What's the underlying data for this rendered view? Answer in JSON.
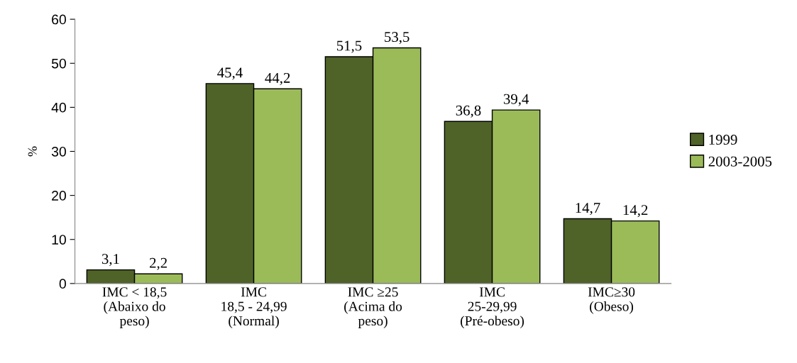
{
  "chart_data": {
    "type": "bar",
    "ylabel": "%",
    "categories": [
      "IMC < 18,5\n(Abaixo do\npeso)",
      "IMC\n18,5 - 24,99\n(Normal)",
      "IMC ≥25\n(Acima do\npeso)",
      "IMC\n25-29,99\n(Pré-obeso)",
      "IMC≥30\n(Obeso)"
    ],
    "series": [
      {
        "name": "1999",
        "color": "#4f6228",
        "values": [
          3.1,
          45.4,
          51.5,
          36.8,
          14.7
        ],
        "value_labels": [
          "3,1",
          "45,4",
          "51,5",
          "36,8",
          "14,7"
        ]
      },
      {
        "name": "2003-2005",
        "color": "#9bbb59",
        "values": [
          2.2,
          44.2,
          53.5,
          39.4,
          14.2
        ],
        "value_labels": [
          "2,2",
          "44,2",
          "53,5",
          "39,4",
          "14,2"
        ]
      }
    ],
    "ylim": [
      0,
      60
    ],
    "yticks": [
      0,
      10,
      20,
      30,
      40,
      50,
      60
    ],
    "grid": false,
    "legend": "right"
  }
}
